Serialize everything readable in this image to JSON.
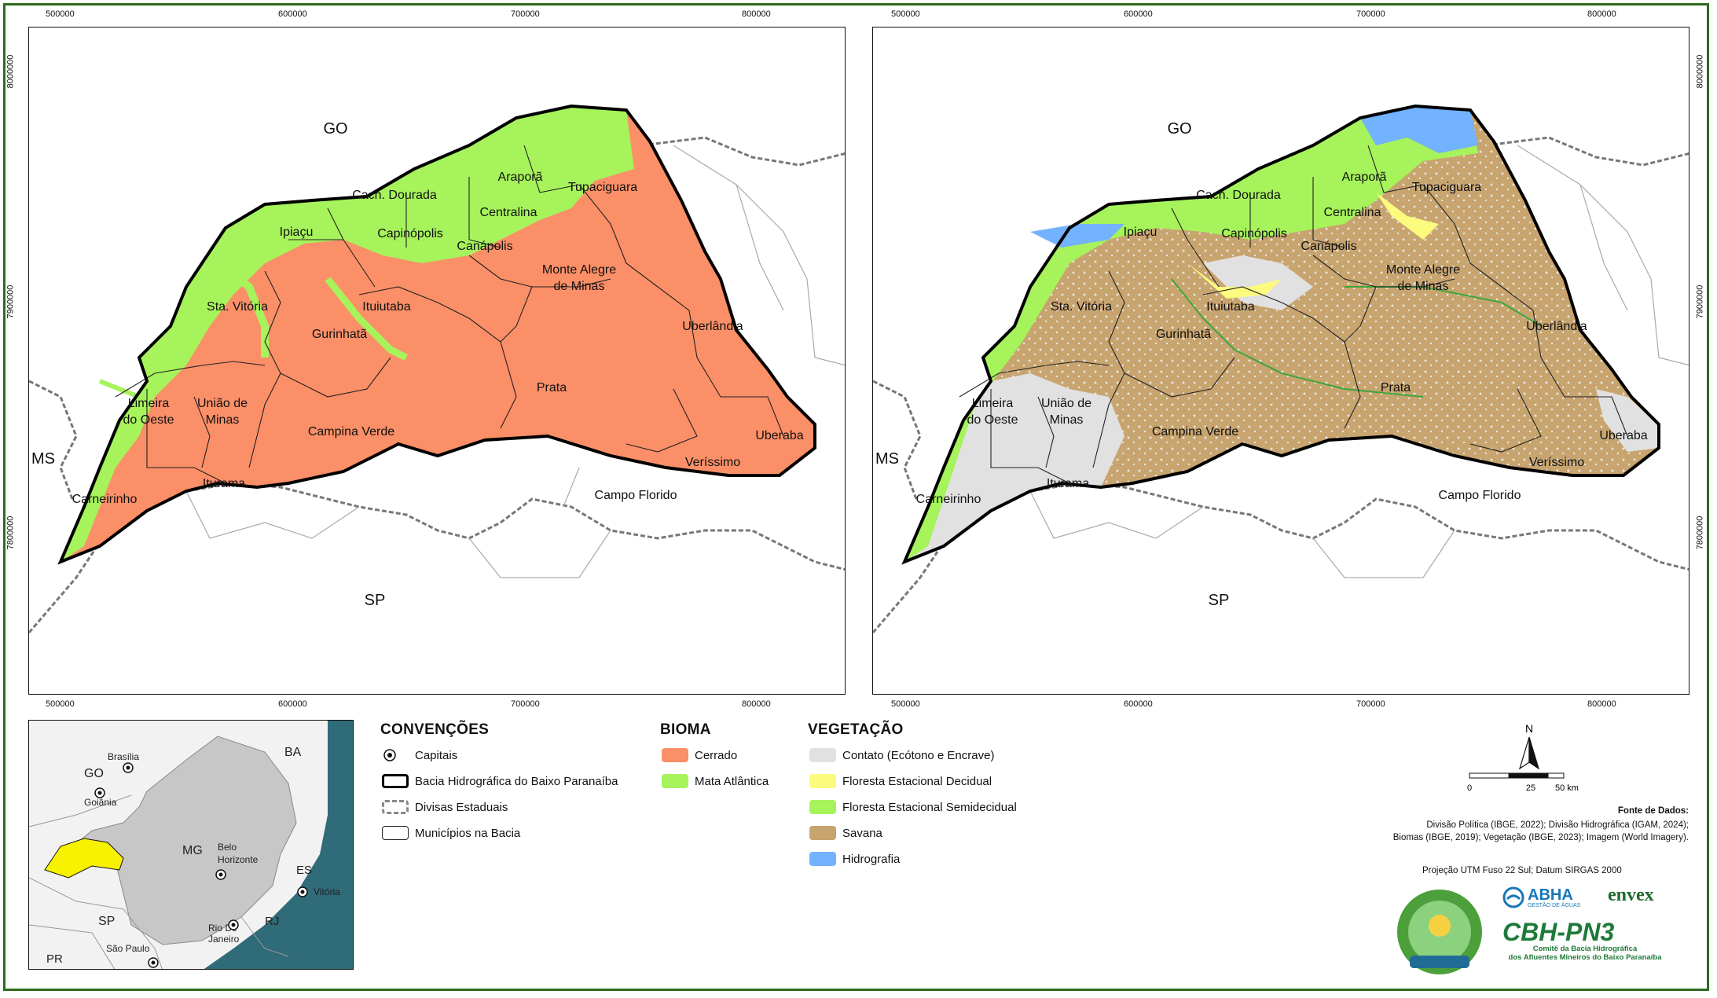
{
  "coords": {
    "x_ticks": [
      "500000",
      "600000",
      "700000",
      "800000"
    ],
    "y_ticks": [
      "8000000",
      "7900000",
      "7800000"
    ]
  },
  "left_map": {
    "states": {
      "go": "GO",
      "ms": "MS",
      "sp": "SP"
    },
    "municipalities": [
      "Araporã",
      "Tupaciguara",
      "Cach. Dourada",
      "Centralina",
      "Ipiaçu",
      "Capinópolis",
      "Canápolis",
      "Monte Alegre",
      "de Minas",
      "Sta. Vitória",
      "Ituiutaba",
      "Uberlândia",
      "Gurinhatã",
      "Prata",
      "Limeira",
      "do Oeste",
      "União de",
      "Minas",
      "Campina Verde",
      "Uberaba",
      "Veríssimo",
      "Iturama",
      "Campo Florido",
      "Carneirinho"
    ]
  },
  "locator": {
    "labels": {
      "brasilia": "Brasília",
      "go": "GO",
      "goiania": "Goiânia",
      "ba": "BA",
      "mg": "MG",
      "belo": "Belo",
      "horizonte": "Horizonte",
      "es": "ES",
      "vitoria": "Vitória",
      "sp": "SP",
      "rj": "RJ",
      "rio": "Rio De",
      "janeiro": "Janeiro",
      "saopaulo": "São Paulo",
      "pr": "PR"
    }
  },
  "legend": {
    "convencoes": {
      "title": "CONVENÇÕES",
      "items": [
        "Capitais",
        "Bacia Hidrográfica do Baixo Paranaíba",
        "Divisas Estaduais",
        "Municípios na Bacia"
      ]
    },
    "bioma": {
      "title": "BIOMA",
      "items": [
        {
          "label": "Cerrado",
          "color": "#fb8f67"
        },
        {
          "label": "Mata Atlântica",
          "color": "#a6f35b"
        }
      ]
    },
    "vegetacao": {
      "title": "VEGETAÇÃO",
      "items": [
        {
          "label": "Contato (Ecótono e Encrave)",
          "color": "#e1e1e1"
        },
        {
          "label": "Floresta Estacional Decidual",
          "color": "#fcfb7e"
        },
        {
          "label": "Floresta Estacional Semidecidual",
          "color": "#a6f35b"
        },
        {
          "label": "Savana",
          "color": "#c8a46e"
        },
        {
          "label": "Hidrografia",
          "color": "#73b2ff"
        }
      ]
    }
  },
  "scalebar": {
    "north": "N",
    "t0": "0",
    "t25": "25",
    "t50": "50 km"
  },
  "sources": {
    "title": "Fonte de Dados:",
    "line1": "Divisão Política (IBGE, 2022); Divisão Hidrográfica (IGAM, 2024);",
    "line2": "Biomas (IBGE, 2019); Vegetação (IBGE, 2023); Imagem (World Imagery).",
    "projection": "Projeção UTM Fuso 22 Sul; Datum SIRGAS 2000"
  },
  "logos": {
    "abha": "ABHA",
    "abha_sub": "GESTÃO DE ÁGUAS",
    "envex": "envex",
    "cbh": "CBH-PN3",
    "cbh_sub1": "Comitê da Bacia Hidrográfica",
    "cbh_sub2": "dos Afluentes Mineiros do Baixo Paranaíba"
  }
}
